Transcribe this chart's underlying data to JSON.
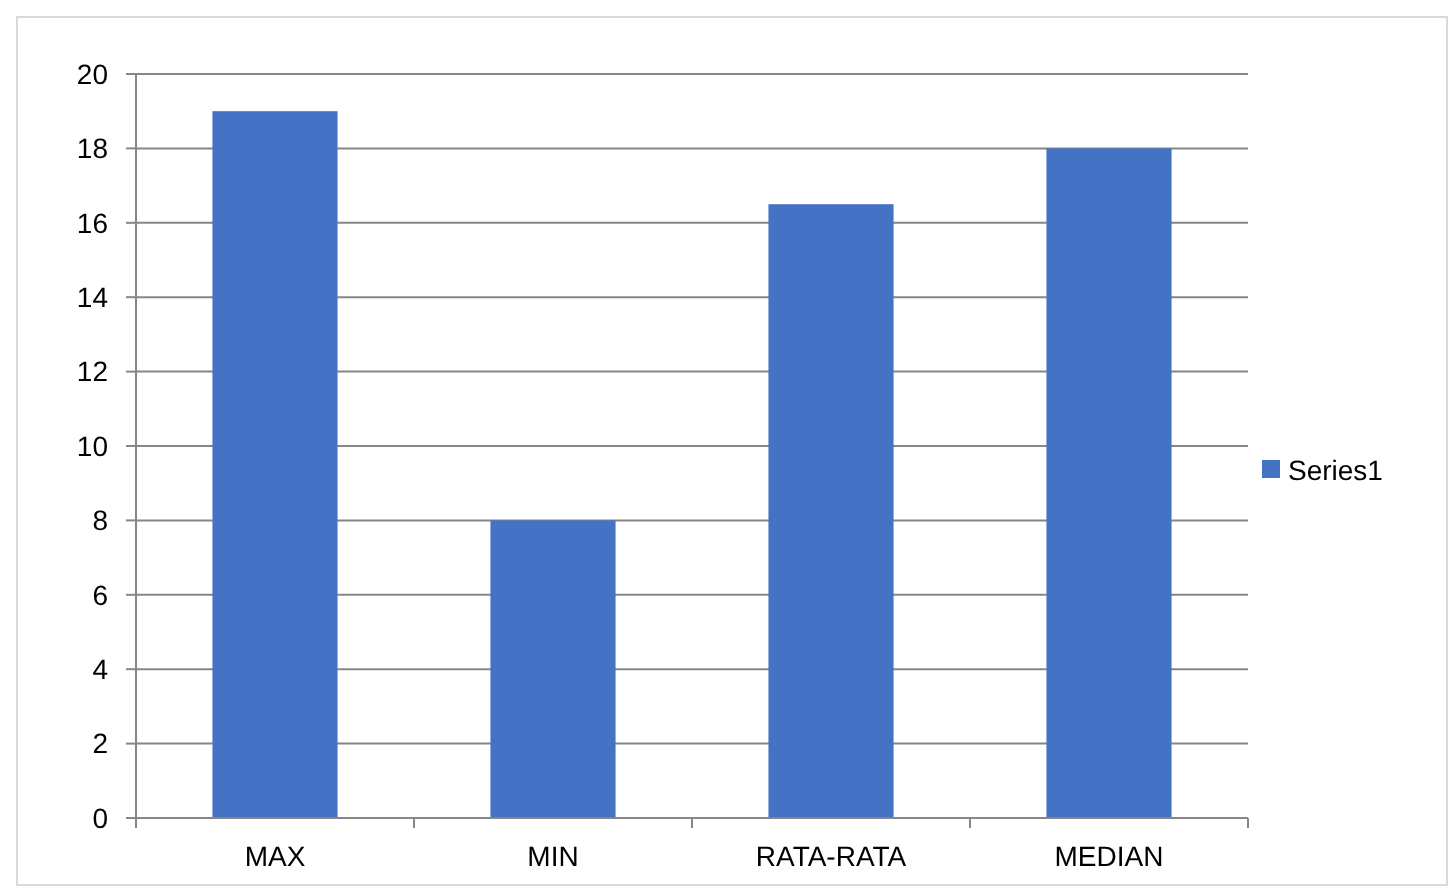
{
  "chart_data": {
    "type": "bar",
    "categories": [
      "MAX",
      "MIN",
      "RATA-RATA",
      "MEDIAN"
    ],
    "series": [
      {
        "name": "Series1",
        "color": "#4472c4",
        "values": [
          19,
          8,
          16.5,
          18
        ]
      }
    ],
    "ylim": [
      0,
      20
    ],
    "yticks": [
      0,
      2,
      4,
      6,
      8,
      10,
      12,
      14,
      16,
      18,
      20
    ],
    "grid": "y",
    "legend": "right"
  }
}
